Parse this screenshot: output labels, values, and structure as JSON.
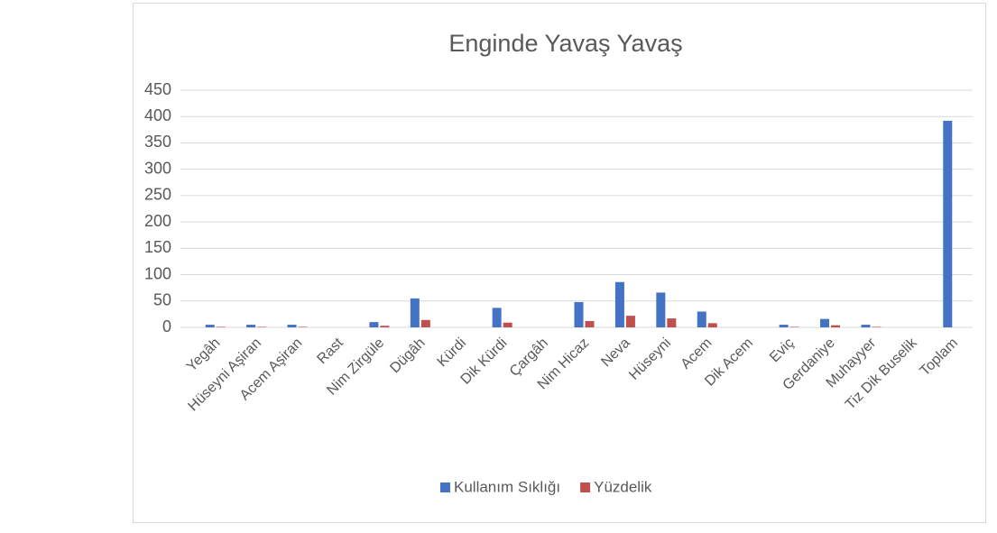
{
  "chart_data": {
    "type": "bar",
    "title": "Enginde Yavaş Yavaş",
    "categories": [
      "Yegâh",
      "Hüseyni Aşiran",
      "Acem Aşiran",
      "Rast",
      "Nim Zirgüle",
      "Dügâh",
      "Kürdi",
      "Dik Kürdi",
      "Çargâh",
      "Nim Hicaz",
      "Neva",
      "Hüseyni",
      "Acem",
      "Dik Acem",
      "Eviç",
      "Gerdaniye",
      "Muhayyer",
      "Tiz Dik Buselik",
      "Toplam"
    ],
    "series": [
      {
        "name": "Kullanım Sıklığı",
        "color": "#4472c4",
        "values": [
          5,
          5,
          5,
          0,
          10,
          55,
          0,
          37,
          0,
          48,
          86,
          66,
          30,
          0,
          5,
          16,
          5,
          0,
          392
        ]
      },
      {
        "name": "Yüzdelik",
        "color": "#c0504d",
        "values": [
          1,
          1,
          1,
          0,
          3,
          14,
          0,
          9,
          0,
          12,
          22,
          17,
          8,
          0,
          1,
          4,
          1,
          0,
          null
        ]
      }
    ],
    "ylim": [
      0,
      450
    ],
    "yticks": [
      0,
      50,
      100,
      150,
      200,
      250,
      300,
      350,
      400,
      450
    ],
    "grid": true,
    "legend": "bottom"
  }
}
